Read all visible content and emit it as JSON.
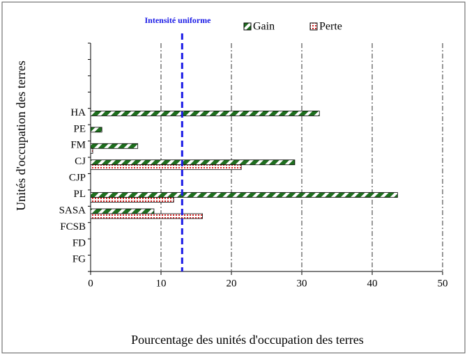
{
  "chart_data": {
    "type": "bar",
    "orientation": "horizontal",
    "annotation": {
      "text": "Intensité uniforme",
      "value": 13,
      "color": "#1a1ae6"
    },
    "xlabel": "Pourcentage des unités d'occupation des terres",
    "ylabel": "Unités  d'occupation des terres",
    "categories": [
      null,
      null,
      null,
      null,
      "HA",
      "PE",
      "FM",
      "CJ",
      "CJP",
      "PL",
      "SASA",
      "FCSB",
      "FD",
      "FG"
    ],
    "series": [
      {
        "name": "Gain",
        "color": "#1e6e1e",
        "values": [
          null,
          null,
          null,
          null,
          32.5,
          1.6,
          6.7,
          29,
          0,
          43.6,
          9,
          0,
          0,
          0
        ]
      },
      {
        "name": "Perte",
        "color": "#d42020",
        "values": [
          null,
          null,
          null,
          null,
          0,
          0,
          0.3,
          21.4,
          0,
          11.8,
          15.9,
          0,
          0,
          0
        ]
      }
    ],
    "xlim": [
      0,
      50
    ],
    "xticks": [
      0,
      10,
      20,
      30,
      40,
      50
    ],
    "grid": true,
    "legend": "top"
  }
}
